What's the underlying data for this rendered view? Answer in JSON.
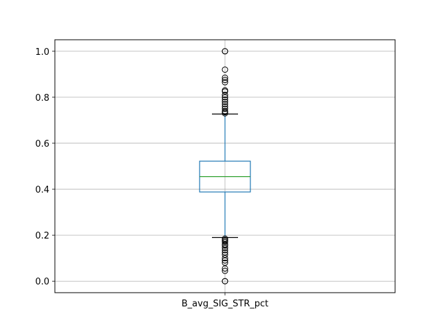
{
  "chart_data": {
    "type": "box",
    "categories": [
      "B_avg_SIG_STR_pct"
    ],
    "ylim": [
      -0.05,
      1.05
    ],
    "yticks": [
      0.0,
      0.2,
      0.4,
      0.6,
      0.8,
      1.0
    ],
    "ytick_labels": [
      "0.0",
      "0.2",
      "0.4",
      "0.6",
      "0.8",
      "1.0"
    ],
    "grid": true,
    "boxes": [
      {
        "name": "B_avg_SIG_STR_pct",
        "q1": 0.388,
        "median": 0.455,
        "q3": 0.522,
        "whisker_low": 0.19,
        "whisker_high": 0.727,
        "outliers": [
          0.0,
          0.0,
          0.045,
          0.055,
          0.08,
          0.09,
          0.1,
          0.115,
          0.125,
          0.135,
          0.145,
          0.155,
          0.16,
          0.17,
          0.175,
          0.18,
          0.185,
          0.73,
          0.735,
          0.74,
          0.75,
          0.76,
          0.77,
          0.78,
          0.79,
          0.8,
          0.81,
          0.825,
          0.83,
          0.865,
          0.875,
          0.885,
          0.92,
          1.0,
          1.0
        ]
      }
    ]
  },
  "colors": {
    "box": "#1f77b4",
    "median": "#2ca02c",
    "whisker_cap": "#000000",
    "outlier": "#000000",
    "grid": "#b0b0b0"
  }
}
